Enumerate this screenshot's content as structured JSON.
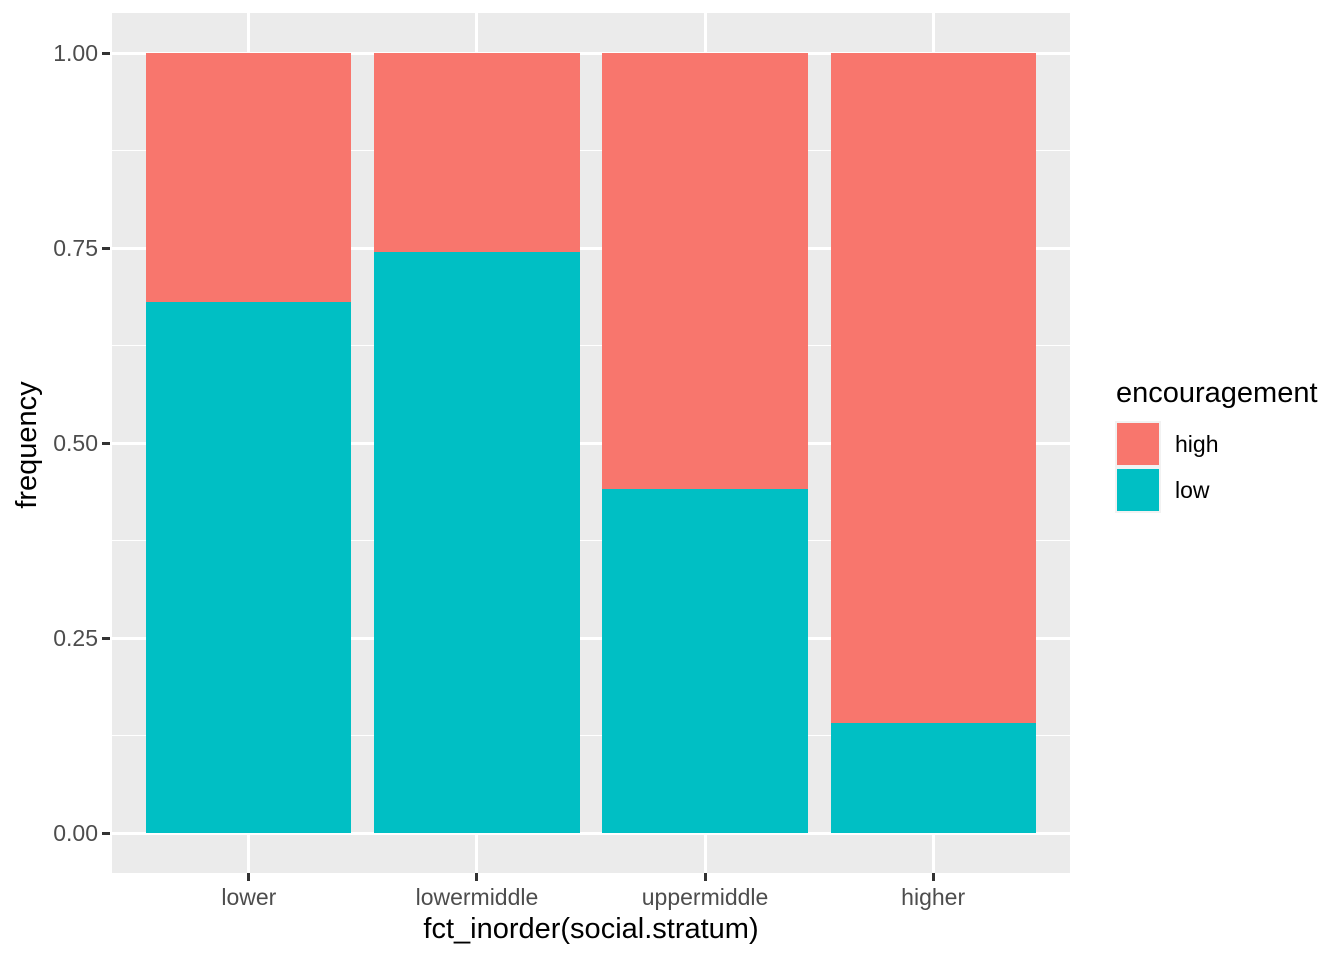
{
  "chart_data": {
    "type": "bar",
    "stacked": true,
    "orientation": "vertical",
    "title": "",
    "xlabel": "fct_inorder(social.stratum)",
    "ylabel": "frequency",
    "categories": [
      "lower",
      "lowermiddle",
      "uppermiddle",
      "higher"
    ],
    "series": [
      {
        "name": "high",
        "color": "#F8766D",
        "values": [
          0.319,
          0.255,
          0.559,
          0.859
        ]
      },
      {
        "name": "low",
        "color": "#00BFC4",
        "values": [
          0.681,
          0.745,
          0.441,
          0.141
        ]
      }
    ],
    "stack_order_bottom_to_top": [
      "low",
      "high"
    ],
    "ylim": [
      0,
      1
    ],
    "y_ticks": [
      {
        "label": "0.00",
        "value": 0.0
      },
      {
        "label": "0.25",
        "value": 0.25
      },
      {
        "label": "0.50",
        "value": 0.5
      },
      {
        "label": "0.75",
        "value": 0.75
      },
      {
        "label": "1.00",
        "value": 1.0
      }
    ],
    "y_minor_ticks": [
      0.125,
      0.375,
      0.625,
      0.875
    ],
    "grid": {
      "major": true,
      "minor": true
    },
    "legend": {
      "title": "encouragement",
      "position": "right",
      "entries": [
        {
          "label": "high",
          "color": "#F8766D"
        },
        {
          "label": "low",
          "color": "#00BFC4"
        }
      ]
    }
  },
  "style": {
    "figure_bg": "#FFFFFF",
    "panel_bg": "#EBEBEB",
    "grid_color": "#FFFFFF",
    "tick_color": "#333333",
    "tick_label_color": "#4D4D4D",
    "title_color": "#000000",
    "legend_key_bg": "#F2F2F2"
  }
}
